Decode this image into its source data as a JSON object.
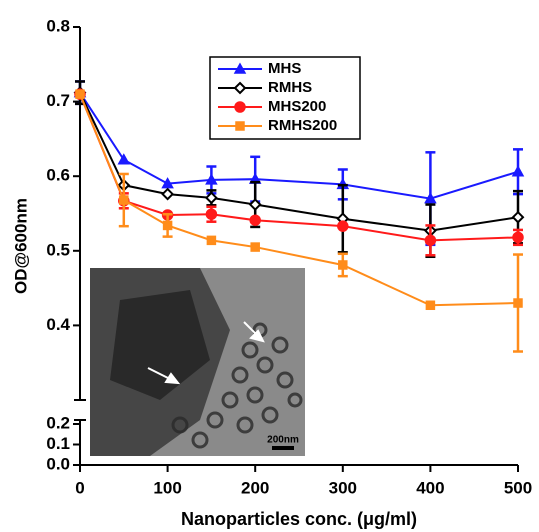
{
  "chart_data": {
    "type": "line",
    "xlabel": "Nanoparticles conc. (μg/ml)",
    "ylabel": "OD@600nm",
    "x": [
      0,
      50,
      100,
      150,
      200,
      300,
      400,
      500
    ],
    "xlim": [
      0,
      500
    ],
    "xticks": [
      0,
      100,
      200,
      300,
      400,
      500
    ],
    "ylim": [
      0,
      0.8
    ],
    "ybreak": [
      0.2,
      0.3
    ],
    "yticks": [
      {
        "value": 0,
        "label": "0.0"
      },
      0.1,
      0.2,
      0.4,
      0.5,
      0.6,
      0.7,
      0.8
    ],
    "legend": "upper center",
    "annotations": [
      "200nm"
    ],
    "series": [
      {
        "name": "MHS",
        "color": "#1a1aff",
        "marker": "triangle",
        "values": [
          0.712,
          0.622,
          0.59,
          0.595,
          0.596,
          0.589,
          0.57,
          0.606
        ],
        "errors": [
          0.015,
          0,
          0,
          0.018,
          0.03,
          0.02,
          0.062,
          0.03
        ]
      },
      {
        "name": "RMHS",
        "color": "#000000",
        "marker": "diamond",
        "values": [
          0.712,
          0.588,
          0.576,
          0.571,
          0.562,
          0.543,
          0.527,
          0.545
        ],
        "errors": [
          0.015,
          0,
          0,
          0.01,
          0.03,
          0.045,
          0.035,
          0.035
        ]
      },
      {
        "name": "MHS200",
        "color": "#ff1a1a",
        "marker": "circle",
        "values": [
          0.71,
          0.567,
          0.548,
          0.549,
          0.541,
          0.533,
          0.514,
          0.518
        ],
        "errors": [
          0,
          0.01,
          0,
          0.01,
          0,
          0,
          0.02,
          0.01
        ]
      },
      {
        "name": "RMHS200",
        "color": "#ff8c1a",
        "marker": "square",
        "values": [
          0.71,
          0.568,
          0.534,
          0.514,
          0.505,
          0.481,
          0.427,
          0.43
        ],
        "errors": [
          0,
          0.035,
          0.015,
          0,
          0,
          0.015,
          0,
          0.065
        ]
      }
    ]
  }
}
